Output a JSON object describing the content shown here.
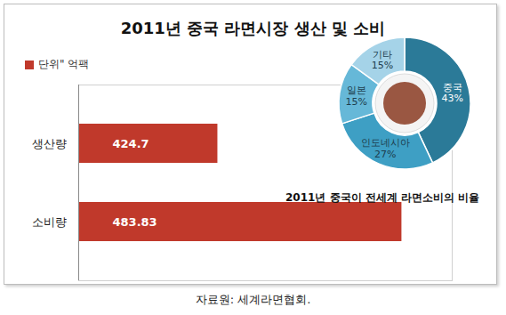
{
  "chart_data": [
    {
      "type": "bar",
      "title": "2011년 중국 라면시장 생산 및 소비",
      "orientation": "horizontal",
      "categories": [
        "생산량",
        "소비량"
      ],
      "series": [
        {
          "name": "단위\" 억팩",
          "color": "#c0392b",
          "values": [
            424.7,
            483.83
          ]
        }
      ],
      "xlim": [
        380,
        500
      ],
      "xticks": [],
      "tick_labels": "y",
      "data_labels": true,
      "legend": "upper left",
      "grid": false,
      "source": "자료원: 세계라면협회."
    },
    {
      "type": "pie",
      "title": "2011년 중국이 전세계 라면소비의 비율",
      "categories": [
        "중국",
        "인도네시아",
        "일본",
        "기타"
      ],
      "values": [
        43,
        27,
        15,
        15
      ],
      "value_labels": [
        "43%",
        "27%",
        "15%",
        "15%"
      ],
      "colors": [
        "#2b7a98",
        "#3e9fc4",
        "#66b8d8",
        "#a5d3e8"
      ],
      "data_labels": true,
      "legend": false
    }
  ]
}
